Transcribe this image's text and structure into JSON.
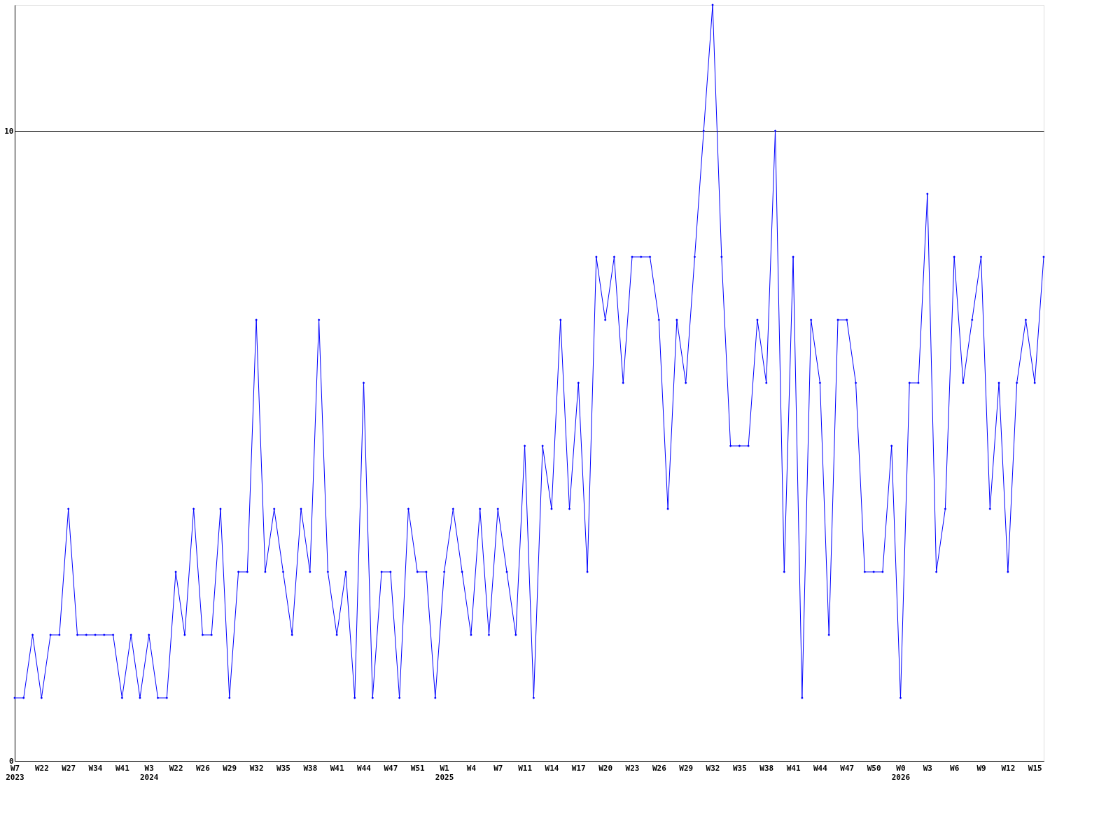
{
  "chart_data": {
    "type": "line",
    "categories": [
      "W7\n2023",
      null,
      null,
      "W22",
      null,
      null,
      "W27",
      null,
      null,
      "W34",
      null,
      null,
      "W41",
      null,
      null,
      "W3\n2024",
      null,
      null,
      "W22",
      null,
      null,
      "W26",
      null,
      null,
      "W29",
      null,
      null,
      "W32",
      null,
      null,
      "W35",
      null,
      null,
      "W38",
      null,
      null,
      "W41",
      null,
      null,
      "W44",
      null,
      null,
      "W47",
      null,
      null,
      "W51",
      null,
      null,
      "W1\n2025",
      null,
      null,
      "W4",
      null,
      null,
      "W7",
      null,
      null,
      "W11",
      null,
      null,
      "W14",
      null,
      null,
      "W17",
      null,
      null,
      "W20",
      null,
      null,
      "W23",
      null,
      null,
      "W26",
      null,
      null,
      "W29",
      null,
      null,
      "W32",
      null,
      null,
      "W35",
      null,
      null,
      "W38",
      null,
      null,
      "W41",
      null,
      null,
      "W44",
      null,
      null,
      "W47",
      null,
      null,
      "W50",
      null,
      null,
      "W0\n2026",
      null,
      null,
      "W3",
      null,
      null,
      "W6",
      null,
      null,
      "W9",
      null,
      null,
      "W12",
      null,
      null,
      "W15",
      null
    ],
    "series": [
      {
        "color": "#0000ff",
        "values": [
          1,
          1,
          2,
          1,
          2,
          2,
          4,
          2,
          2,
          2,
          2,
          2,
          1,
          2,
          1,
          2,
          1,
          1,
          3,
          2,
          4,
          2,
          2,
          4,
          1,
          3,
          3,
          7,
          3,
          4,
          3,
          2,
          4,
          3,
          7,
          3,
          2,
          3,
          1,
          6,
          1,
          3,
          3,
          1,
          4,
          3,
          3,
          1,
          3,
          4,
          3,
          2,
          4,
          2,
          4,
          3,
          2,
          5,
          1,
          5,
          4,
          7,
          4,
          6,
          3,
          8,
          7,
          8,
          6,
          8,
          8,
          8,
          7,
          4,
          7,
          6,
          8,
          10,
          12,
          8,
          5,
          5,
          5,
          7,
          6,
          10,
          3,
          8,
          1,
          7,
          6,
          2,
          7,
          7,
          6,
          3,
          3,
          3,
          5,
          1,
          6,
          6,
          9,
          3,
          4,
          8,
          6,
          7,
          8,
          4,
          6,
          3,
          6,
          7,
          6,
          8
        ]
      }
    ],
    "ylim": [
      0,
      12
    ],
    "yticks": [
      0,
      10
    ],
    "grid": "y",
    "marker": "diamond",
    "line_style": "solid"
  }
}
